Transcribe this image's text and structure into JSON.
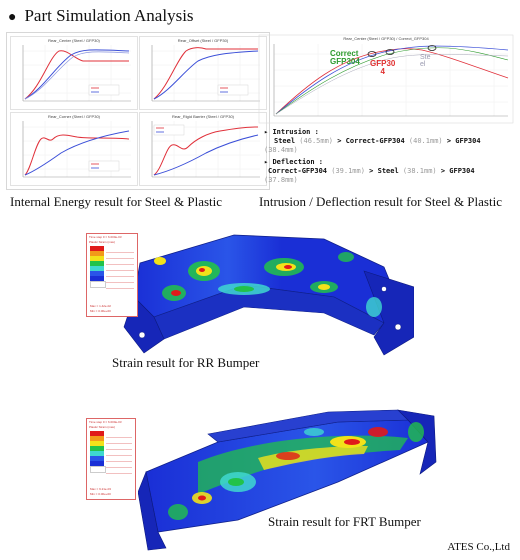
{
  "page": {
    "title": "Part Simulation Analysis",
    "company": "ATES Co.,Ltd"
  },
  "energy_panel": {
    "caption": "Internal Energy result for Steel & Plastic",
    "subcharts": [
      {
        "title": "Rear_Center (Steel / GFP30)"
      },
      {
        "title": "Rear_Offset (Steel / GFP30)"
      },
      {
        "title": "Rear_Corner (Steel / GFP30)"
      },
      {
        "title": "Rear_Rigid Barrier (Steel / GFP30)"
      }
    ]
  },
  "intrusion_panel": {
    "caption": "Intrusion / Deflection result for Steel & Plastic",
    "chart_title": "Rear_Center (Steel / GFP30) / Correct_GFP304",
    "label_correct": "Correct",
    "label_gfp304": "GFP304",
    "label_gfp30": "GFP30",
    "label_4": "4",
    "label_ste": "Ste",
    "label_el": "el",
    "intrusion": {
      "heading": "Intrusion :",
      "steel": "Steel",
      "steel_val": "(46.5mm)",
      "gt1": ">",
      "correct": "Correct-GFP304",
      "correct_val": "(40.1mm)",
      "gt2": ">",
      "gfp": "GFP304",
      "gfp_val": "(38.4mm)"
    },
    "deflection": {
      "heading": "Deflection :",
      "correct": "Correct-GFP304",
      "correct_val": "(39.1mm)",
      "gt1": ">",
      "steel": "Steel",
      "steel_val": "(38.1mm)",
      "gt2": ">",
      "gfp": "GFP304",
      "gfp_val": "(37.8mm)"
    }
  },
  "rr_bumper": {
    "caption": "Strain result for RR Bumper",
    "legend_title": "Time step 0 = 6.000e-03",
    "legend_sub": "Plastic Strain (max)",
    "legend_foot1": "Max = 1.42e-02",
    "legend_foot2": "Min = 0.00e+00"
  },
  "frt_bumper": {
    "caption": "Strain result for FRT Bumper",
    "legend_title": "Time step 0 = 6.000e-03",
    "legend_sub": "Plastic Strain (max)",
    "legend_foot1": "Max = 9.21e-03",
    "legend_foot2": "Min = 0.00e+00"
  },
  "colors": {
    "steel_line": "#e0303a",
    "plastic_line": "#3b4fd8",
    "correct_label": "#2e9b2e",
    "gfp30_label": "#e03030",
    "strain_blue": "#1a2fd6",
    "strain_red": "#e01a1a",
    "strain_green": "#22c24a",
    "strain_yellow": "#f2e21a"
  }
}
